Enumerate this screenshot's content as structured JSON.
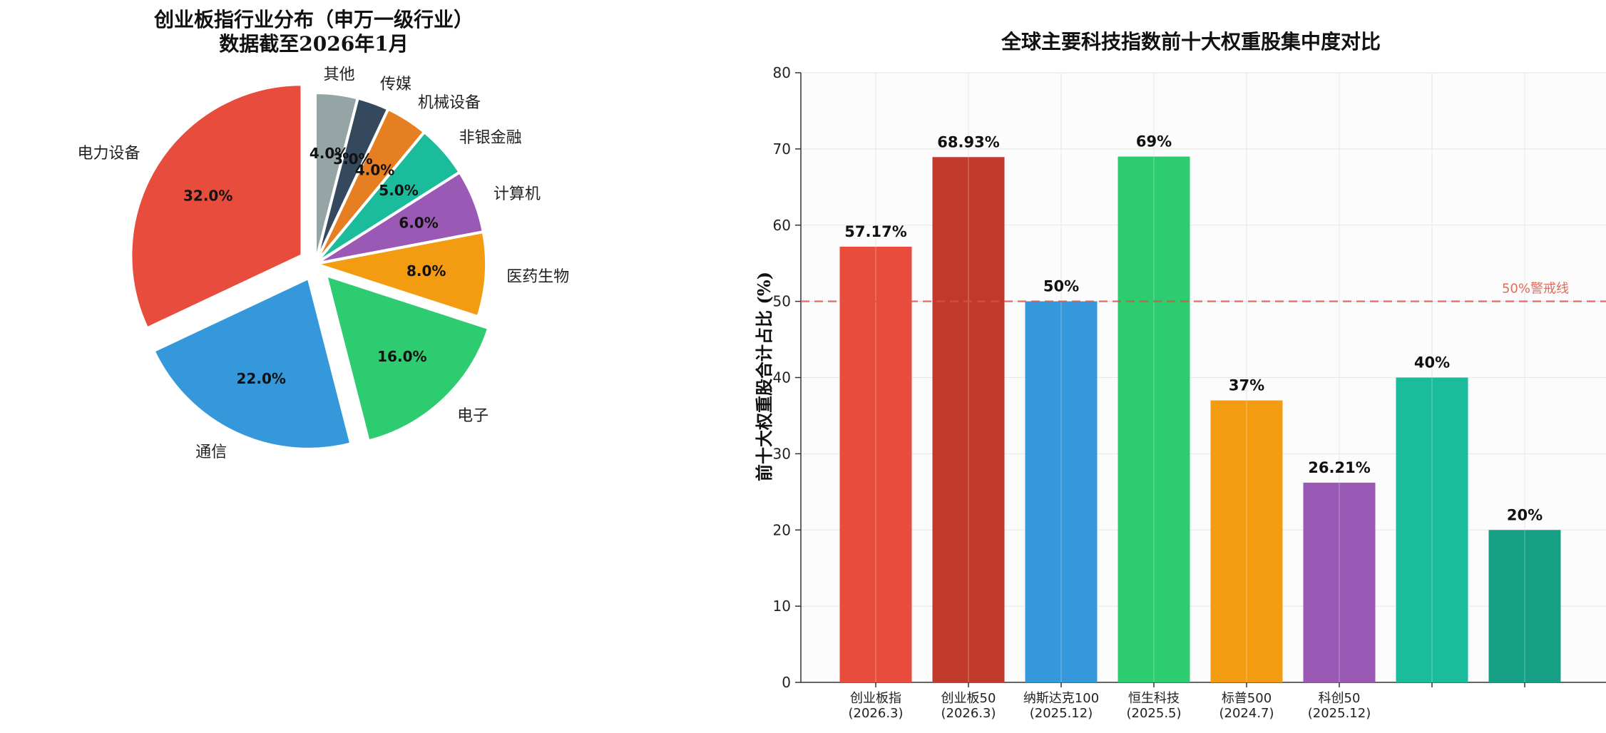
{
  "chart_data": [
    {
      "type": "pie",
      "title": "创业板指行业分布（申万一级行业）",
      "subtitle": "数据截至2026年1月",
      "categories": [
        "电力设备",
        "通信",
        "电子",
        "医药生物",
        "计算机",
        "非银金融",
        "机械设备",
        "传媒",
        "其他"
      ],
      "values": [
        32.0,
        22.0,
        16.0,
        8.0,
        6.0,
        5.0,
        4.0,
        3.0,
        4.0
      ],
      "value_labels": [
        "32.0%",
        "22.0%",
        "16.0%",
        "8.0%",
        "6.0%",
        "5.0%",
        "4.0%",
        "3.0%",
        "4.0%"
      ],
      "colors": [
        "#e74c3c",
        "#3498db",
        "#2ecc71",
        "#f39c12",
        "#9b59b6",
        "#1abc9c",
        "#e67e22",
        "#34495e",
        "#95a5a6"
      ],
      "exploded": [
        "电力设备",
        "通信",
        "电子"
      ],
      "start": "top",
      "direction": "counterclockwise"
    },
    {
      "type": "bar",
      "title": "全球主要科技指数前十大权重股集中度对比",
      "xlabel": "",
      "ylabel": "前十大权重股合计占比 (%)",
      "ylim": [
        0,
        80
      ],
      "yticks": [
        "0",
        "10",
        "20",
        "30",
        "40",
        "50",
        "60",
        "70",
        "80"
      ],
      "grid": true,
      "categories": [
        "创业板指\n(2026.3)",
        "创业板50\n(2026.3)",
        "纳斯达克100\n(2025.12)",
        "恒生科技\n(2025.5)",
        "标普500\n(2024.7)",
        "科创50\n(2025.12)",
        "",
        ""
      ],
      "values": [
        57.17,
        68.93,
        50,
        69,
        37,
        26.21,
        40,
        20
      ],
      "value_labels": [
        "57.17%",
        "68.93%",
        "50%",
        "69%",
        "37%",
        "26.21%",
        "40%",
        "20%"
      ],
      "colors": [
        "#e74c3c",
        "#c0392b",
        "#3498db",
        "#2ecc71",
        "#f39c12",
        "#9b59b6",
        "#1abc9c",
        "#16a085"
      ],
      "reference_line": {
        "value": 50,
        "label": "50%警戒线",
        "color": "#e74c3c",
        "style": "dashed"
      }
    }
  ]
}
